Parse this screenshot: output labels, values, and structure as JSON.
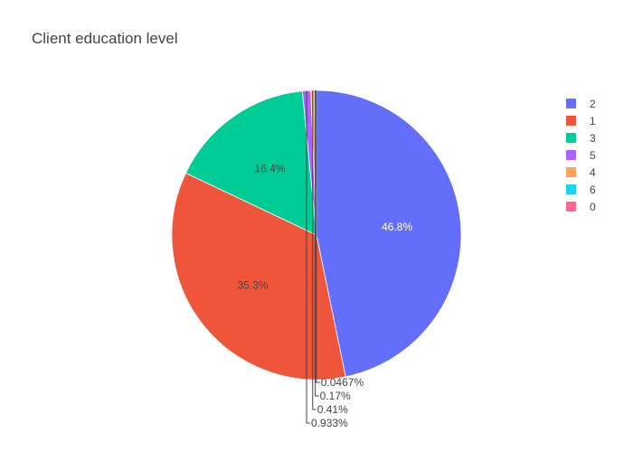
{
  "chart_data": {
    "type": "pie",
    "title": "Client education level",
    "slices": [
      {
        "label": "2",
        "percent": 46.8,
        "percent_text": "46.8%",
        "color": "#636efa",
        "label_pos": "inside",
        "text_color": "#ffffff"
      },
      {
        "label": "1",
        "percent": 35.3,
        "percent_text": "35.3%",
        "color": "#ef553b",
        "label_pos": "inside",
        "text_color": "#444444"
      },
      {
        "label": "3",
        "percent": 16.4,
        "percent_text": "16.4%",
        "color": "#00cc96",
        "label_pos": "inside",
        "text_color": "#444444"
      },
      {
        "label": "5",
        "percent": 0.933,
        "percent_text": "0.933%",
        "color": "#ab63fa",
        "label_pos": "outside",
        "text_color": "#444444"
      },
      {
        "label": "4",
        "percent": 0.41,
        "percent_text": "0.41%",
        "color": "#ffa15a",
        "label_pos": "outside",
        "text_color": "#444444"
      },
      {
        "label": "6",
        "percent": 0.17,
        "percent_text": "0.17%",
        "color": "#19d3f3",
        "label_pos": "outside",
        "text_color": "#444444"
      },
      {
        "label": "0",
        "percent": 0.0467,
        "percent_text": "0.0467%",
        "color": "#ff6692",
        "label_pos": "outside",
        "text_color": "#444444"
      }
    ],
    "direction": "clockwise",
    "start": "top",
    "legend_placement": "top-right",
    "legend_order": [
      "2",
      "1",
      "3",
      "5",
      "4",
      "6",
      "0"
    ]
  }
}
